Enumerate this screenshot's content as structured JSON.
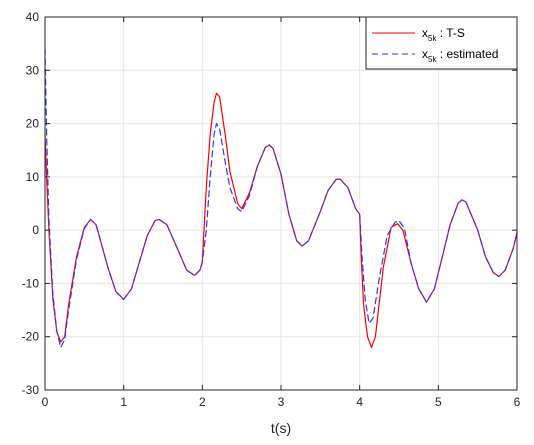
{
  "chart_data": {
    "type": "line",
    "xlabel": "t(s)",
    "ylabel": "",
    "xlim": [
      0,
      6
    ],
    "ylim": [
      -30,
      40
    ],
    "x_ticks": [
      "0",
      "1",
      "2",
      "3",
      "4",
      "5",
      "6"
    ],
    "y_ticks": [
      "-30",
      "-20",
      "-10",
      "0",
      "10",
      "20",
      "30",
      "40"
    ],
    "grid": true,
    "legend_position": "top-right",
    "series": [
      {
        "name": "x5k : T-S",
        "legend_main": "x",
        "legend_sub": "5k",
        "legend_rest": " : T-S",
        "color": "#ff0000",
        "style": "solid",
        "points": [
          [
            0.0,
            18
          ],
          [
            0.02,
            10
          ],
          [
            0.05,
            0
          ],
          [
            0.1,
            -13
          ],
          [
            0.15,
            -19
          ],
          [
            0.2,
            -21
          ],
          [
            0.25,
            -20
          ],
          [
            0.3,
            -14
          ],
          [
            0.4,
            -5
          ],
          [
            0.5,
            0.5
          ],
          [
            0.58,
            2
          ],
          [
            0.65,
            1
          ],
          [
            0.8,
            -7
          ],
          [
            0.9,
            -11.5
          ],
          [
            1.0,
            -13
          ],
          [
            1.1,
            -11
          ],
          [
            1.2,
            -6
          ],
          [
            1.3,
            -1
          ],
          [
            1.4,
            1.8
          ],
          [
            1.45,
            2
          ],
          [
            1.55,
            1
          ],
          [
            1.7,
            -4
          ],
          [
            1.8,
            -7.5
          ],
          [
            1.9,
            -8.5
          ],
          [
            1.97,
            -7.5
          ],
          [
            2.0,
            -6
          ],
          [
            2.05,
            8
          ],
          [
            2.1,
            18
          ],
          [
            2.15,
            24
          ],
          [
            2.18,
            25.7
          ],
          [
            2.22,
            25
          ],
          [
            2.3,
            17
          ],
          [
            2.35,
            11
          ],
          [
            2.45,
            5
          ],
          [
            2.5,
            4
          ],
          [
            2.6,
            7
          ],
          [
            2.7,
            12
          ],
          [
            2.8,
            15.5
          ],
          [
            2.85,
            16
          ],
          [
            2.9,
            15.3
          ],
          [
            3.0,
            10.5
          ],
          [
            3.1,
            3
          ],
          [
            3.2,
            -2
          ],
          [
            3.27,
            -3
          ],
          [
            3.35,
            -2
          ],
          [
            3.5,
            3.5
          ],
          [
            3.6,
            7.5
          ],
          [
            3.7,
            9.5
          ],
          [
            3.75,
            9.6
          ],
          [
            3.85,
            8
          ],
          [
            3.95,
            4
          ],
          [
            4.0,
            3
          ],
          [
            4.02,
            -5
          ],
          [
            4.05,
            -14
          ],
          [
            4.1,
            -20
          ],
          [
            4.15,
            -22
          ],
          [
            4.2,
            -20
          ],
          [
            4.3,
            -7
          ],
          [
            4.4,
            0.5
          ],
          [
            4.48,
            1.2
          ],
          [
            4.55,
            0
          ],
          [
            4.65,
            -6
          ],
          [
            4.75,
            -11
          ],
          [
            4.85,
            -13.5
          ],
          [
            4.95,
            -11
          ],
          [
            5.05,
            -5
          ],
          [
            5.15,
            1
          ],
          [
            5.25,
            5
          ],
          [
            5.3,
            5.7
          ],
          [
            5.35,
            5.3
          ],
          [
            5.5,
            0
          ],
          [
            5.6,
            -5
          ],
          [
            5.7,
            -8
          ],
          [
            5.77,
            -8.7
          ],
          [
            5.85,
            -7.5
          ],
          [
            5.95,
            -3.5
          ],
          [
            6.0,
            -0.5
          ]
        ]
      },
      {
        "name": "x5k : estimated",
        "legend_main": "x",
        "legend_sub": "5k",
        "legend_rest": " : estimated",
        "color": "#3333ff",
        "style": "dashed",
        "points": [
          [
            0.0,
            34
          ],
          [
            0.02,
            18
          ],
          [
            0.05,
            2
          ],
          [
            0.1,
            -12
          ],
          [
            0.15,
            -19
          ],
          [
            0.2,
            -22
          ],
          [
            0.25,
            -20.5
          ],
          [
            0.3,
            -15
          ],
          [
            0.4,
            -5.5
          ],
          [
            0.5,
            0.3
          ],
          [
            0.58,
            2
          ],
          [
            0.65,
            1
          ],
          [
            0.8,
            -7
          ],
          [
            0.9,
            -11.5
          ],
          [
            1.0,
            -13
          ],
          [
            1.1,
            -11
          ],
          [
            1.2,
            -6
          ],
          [
            1.3,
            -1
          ],
          [
            1.4,
            1.8
          ],
          [
            1.45,
            2
          ],
          [
            1.55,
            1
          ],
          [
            1.7,
            -4
          ],
          [
            1.8,
            -7.5
          ],
          [
            1.9,
            -8.5
          ],
          [
            1.97,
            -7.5
          ],
          [
            2.0,
            -6
          ],
          [
            2.05,
            0
          ],
          [
            2.1,
            10
          ],
          [
            2.15,
            18
          ],
          [
            2.18,
            20
          ],
          [
            2.22,
            19
          ],
          [
            2.3,
            12
          ],
          [
            2.35,
            8
          ],
          [
            2.45,
            4
          ],
          [
            2.5,
            3.5
          ],
          [
            2.6,
            6.5
          ],
          [
            2.7,
            12
          ],
          [
            2.8,
            15.5
          ],
          [
            2.85,
            16
          ],
          [
            2.9,
            15.3
          ],
          [
            3.0,
            10.5
          ],
          [
            3.1,
            3
          ],
          [
            3.2,
            -2
          ],
          [
            3.27,
            -3
          ],
          [
            3.35,
            -2
          ],
          [
            3.5,
            3.5
          ],
          [
            3.6,
            7.5
          ],
          [
            3.7,
            9.5
          ],
          [
            3.75,
            9.6
          ],
          [
            3.85,
            8
          ],
          [
            3.95,
            4
          ],
          [
            4.0,
            3
          ],
          [
            4.03,
            -5
          ],
          [
            4.07,
            -13
          ],
          [
            4.12,
            -17.5
          ],
          [
            4.17,
            -16.5
          ],
          [
            4.25,
            -9
          ],
          [
            4.35,
            -1
          ],
          [
            4.45,
            1.5
          ],
          [
            4.5,
            1.8
          ],
          [
            4.57,
            0.3
          ],
          [
            4.65,
            -6
          ],
          [
            4.75,
            -11
          ],
          [
            4.85,
            -13.5
          ],
          [
            4.95,
            -11
          ],
          [
            5.05,
            -5
          ],
          [
            5.15,
            1
          ],
          [
            5.25,
            5
          ],
          [
            5.3,
            5.7
          ],
          [
            5.35,
            5.3
          ],
          [
            5.5,
            0
          ],
          [
            5.6,
            -5
          ],
          [
            5.7,
            -8
          ],
          [
            5.77,
            -8.7
          ],
          [
            5.85,
            -7.5
          ],
          [
            5.95,
            -3.5
          ],
          [
            6.0,
            -0.5
          ]
        ]
      }
    ]
  }
}
